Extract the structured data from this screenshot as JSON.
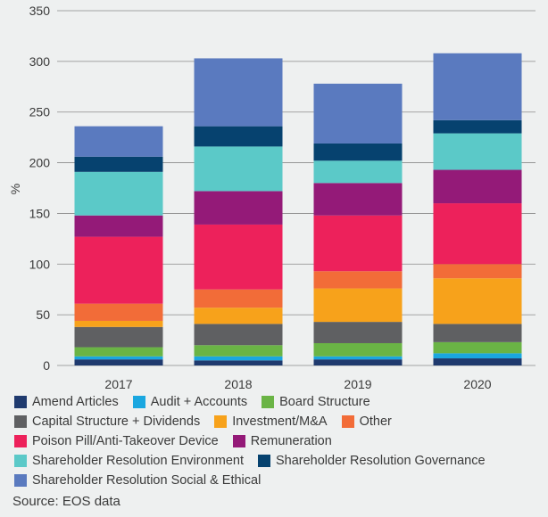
{
  "chart_data": {
    "type": "bar",
    "stacked": true,
    "categories": [
      "2017",
      "2018",
      "2019",
      "2020"
    ],
    "ylabel": "%",
    "ylim": [
      0,
      350
    ],
    "yticks": [
      0,
      50,
      100,
      150,
      200,
      250,
      300,
      350
    ],
    "grid": true,
    "legend_position": "bottom",
    "series": [
      {
        "name": "Amend Articles",
        "color": "#1f3a6e",
        "values": [
          6,
          5,
          6,
          7
        ]
      },
      {
        "name": "Audit + Accounts",
        "color": "#1aa7e0",
        "values": [
          3,
          4,
          3,
          5
        ]
      },
      {
        "name": "Board Structure",
        "color": "#6ab445",
        "values": [
          9,
          11,
          13,
          11
        ]
      },
      {
        "name": "Capital Structure + Dividends",
        "color": "#5f6062",
        "values": [
          20,
          21,
          21,
          18
        ]
      },
      {
        "name": "Investment/M&A",
        "color": "#f7a21b",
        "values": [
          6,
          16,
          33,
          45
        ]
      },
      {
        "name": "Other",
        "color": "#f26c38",
        "values": [
          17,
          18,
          17,
          14
        ]
      },
      {
        "name": "Poison Pill/Anti-Takeover Device",
        "color": "#ed215b",
        "values": [
          66,
          64,
          55,
          60
        ]
      },
      {
        "name": "Remuneration",
        "color": "#941a78",
        "values": [
          21,
          33,
          32,
          33
        ]
      },
      {
        "name": "Shareholder Resolution Environment",
        "color": "#5bc9c8",
        "values": [
          43,
          44,
          22,
          36
        ]
      },
      {
        "name": "Shareholder Resolution Governance",
        "color": "#06426f",
        "values": [
          15,
          20,
          17,
          13
        ]
      },
      {
        "name": "Shareholder Resolution Social & Ethical",
        "color": "#5a7abf",
        "values": [
          30,
          67,
          59,
          66
        ]
      }
    ]
  },
  "source": "Source: EOS data"
}
